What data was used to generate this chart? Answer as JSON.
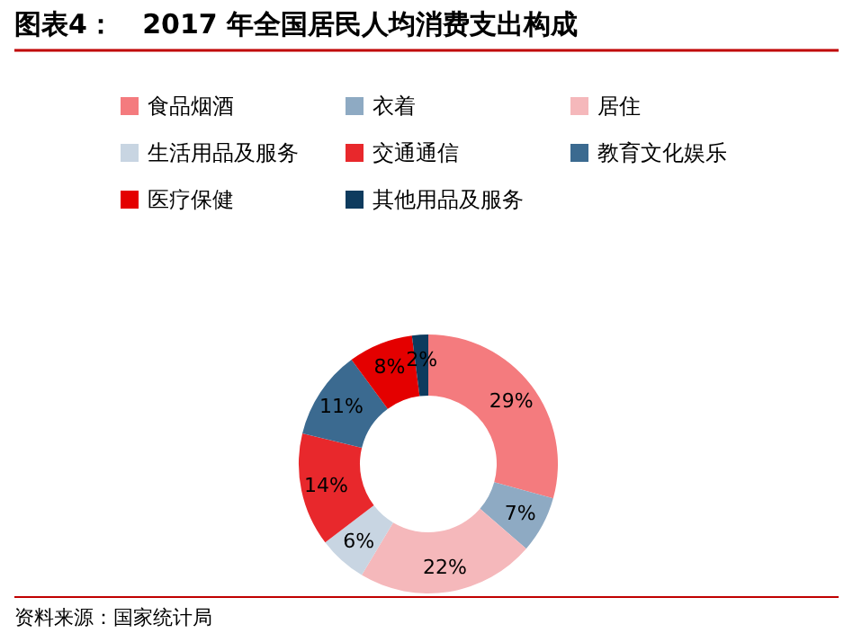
{
  "chart_data": {
    "type": "donut",
    "title": "图表4：   2017 年全国居民人均消费支出构成",
    "categories": [
      "食品烟酒",
      "衣着",
      "居住",
      "生活用品及服务",
      "交通通信",
      "教育文化娱乐",
      "医疗保健",
      "其他用品及服务"
    ],
    "values": [
      29,
      7,
      22,
      6,
      14,
      11,
      8,
      2
    ],
    "colors": [
      "#f47b7e",
      "#8eaac3",
      "#f5b8bb",
      "#c8d5e2",
      "#e8282c",
      "#3b6a90",
      "#e40000",
      "#0e3b5e"
    ],
    "value_labels": [
      "29%",
      "7%",
      "22%",
      "6%",
      "14%",
      "11%",
      "8%",
      "2%"
    ],
    "legend": "top",
    "annotations": [
      "资料来源：国家统计局"
    ]
  }
}
